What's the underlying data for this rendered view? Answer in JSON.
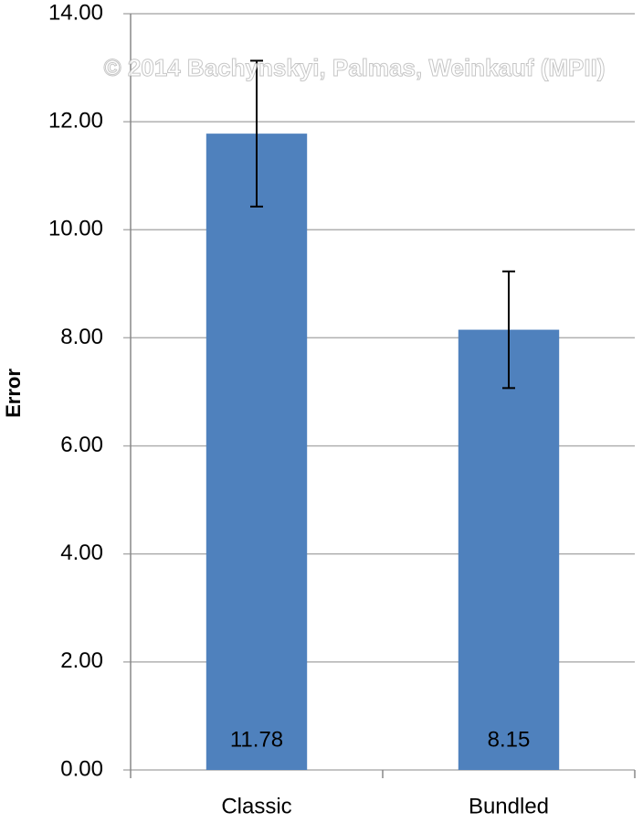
{
  "chart_data": {
    "type": "bar",
    "y_label": "Error",
    "annotation": "© 2014 Bachynskyi, Palmas, Weinkauf (MPII)",
    "categories": [
      "Classic",
      "Bundled"
    ],
    "values": [
      11.78,
      8.15
    ],
    "errors": [
      1.35,
      1.08
    ],
    "color": "#4f81bd",
    "ylim": [
      0,
      14
    ],
    "yticks": [
      {
        "value": 0,
        "label": "0.00"
      },
      {
        "value": 2,
        "label": "2.00"
      },
      {
        "value": 4,
        "label": "4.00"
      },
      {
        "value": 6,
        "label": "6.00"
      },
      {
        "value": 8,
        "label": "8.00"
      },
      {
        "value": 10,
        "label": "10.00"
      },
      {
        "value": 12,
        "label": "12.00"
      },
      {
        "value": 14,
        "label": "14.00"
      }
    ],
    "grid": true
  }
}
